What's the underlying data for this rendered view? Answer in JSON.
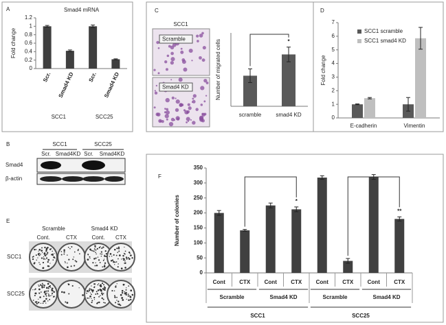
{
  "chart_data": [
    {
      "type": "bar",
      "label": "A",
      "title": "Smad4 mRNA",
      "y_label": "Fold change",
      "categories": [
        "Scr.",
        "Smad4 KD",
        "Scr.",
        "Smad4 KD"
      ],
      "groups": [
        "SCC1",
        "SCC25"
      ],
      "values": [
        1.0,
        0.42,
        1.0,
        0.22
      ],
      "errors": [
        0.02,
        0.02,
        0.03,
        0.01
      ],
      "color": "#3f3f3f",
      "ylim": [
        0,
        1.2
      ],
      "yticks": [
        0,
        0.2,
        0.4,
        0.6,
        0.8,
        1,
        1.2
      ]
    },
    {
      "type": "bar",
      "label": "C",
      "y_label": "Number of migrated cells",
      "categories": [
        "scramble",
        "smad4 KD"
      ],
      "values": [
        125,
        212
      ],
      "errors": [
        28,
        30
      ],
      "color": "#595959",
      "ylim": [
        0,
        300
      ],
      "annotations": [
        "*"
      ]
    },
    {
      "type": "bar",
      "label": "D",
      "y_label": "Fold change",
      "categories": [
        "E-cadherin",
        "Vimentin"
      ],
      "series": [
        {
          "name": "SCC1 scramble",
          "color": "#595959",
          "values": [
            1,
            1
          ],
          "errors": [
            0.03,
            0.5
          ]
        },
        {
          "name": "SCC1 smad4 KD",
          "color": "#bfbfbf",
          "values": [
            1.45,
            5.85
          ],
          "errors": [
            0.05,
            0.8
          ]
        }
      ],
      "ylim": [
        0,
        7
      ],
      "yticks": [
        0,
        1,
        2,
        3,
        4,
        5,
        6,
        7
      ],
      "legend": "upper left"
    },
    {
      "type": "bar",
      "label": "F",
      "y_label": "Number of colonies",
      "categories": [
        "Cont",
        "CTX",
        "Cont",
        "CTX",
        "Cont",
        "CTX",
        "Cont",
        "CTX"
      ],
      "groups": [
        "Scramble",
        "Smad4 KD",
        "Scramble",
        "Smad4 KD"
      ],
      "supergroups": [
        "SCC1",
        "SCC25"
      ],
      "values": [
        200,
        142,
        225,
        212,
        318,
        40,
        320,
        180
      ],
      "errors": [
        8,
        3,
        8,
        8,
        6,
        8,
        8,
        7
      ],
      "color": "#404040",
      "ylim": [
        0,
        350
      ],
      "yticks": [
        0,
        50,
        100,
        150,
        200,
        250,
        300,
        350
      ],
      "annotations": [
        "*",
        "**"
      ]
    }
  ],
  "blot": {
    "label": "B",
    "groups": [
      "SCC1",
      "SCC25"
    ],
    "lanes": [
      "Scr.",
      "Smad4KD",
      "Scr.",
      "Smad4KD"
    ],
    "rows": [
      "Smad4",
      "β-actin"
    ]
  },
  "colony_assay": {
    "label": "E",
    "groups": [
      "Scramble",
      "Smad4 KD"
    ],
    "columns": [
      "Cont.",
      "CTX",
      "Cont.",
      "CTX"
    ],
    "rows": [
      "SCC1",
      "SCC25"
    ]
  },
  "migration_image": {
    "title": "SCC1",
    "labels": [
      "Scramble",
      "Smad4 KD"
    ]
  }
}
